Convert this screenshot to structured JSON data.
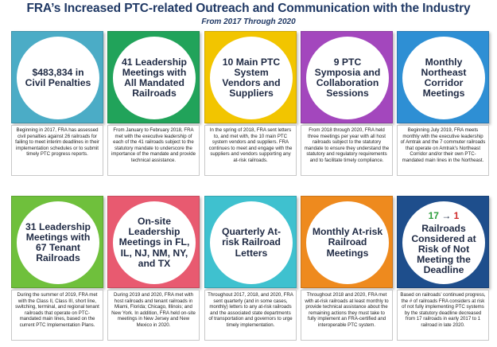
{
  "header": {
    "title": "FRA’s Increased PTC-related Outreach and Communication with the Industry",
    "subtitle": "From 2017 Through 2020"
  },
  "cards": [
    {
      "color": "#4bacc6",
      "headline": "$483,834 in Civil Penalties",
      "description": "Beginning in 2017, FRA has assessed civil penalties against 26 railroads for failing to meet interim deadlines in their implementation schedules or to submit timely PTC progress reports."
    },
    {
      "color": "#21a35a",
      "headline": "41 Leadership Meetings with All Mandated Railroads",
      "description": "From January to February 2018, FRA met with the executive leadership of each of the 41 railroads subject to the statutory mandate to underscore the importance of the mandate and provide technical assistance."
    },
    {
      "color": "#f2c500",
      "headline": "10 Main PTC System Vendors and Suppliers",
      "description": "In the spring of 2018, FRA sent letters to, and met with, the 10 main PTC system vendors and suppliers. FRA continues to meet and engage with the suppliers and vendors supporting any at-risk railroads."
    },
    {
      "color": "#a347bd",
      "headline": "9 PTC Symposia and Collaboration Sessions",
      "description": "From 2018 through 2020, FRA held three meetings per year with all host railroads subject to the statutory mandate to ensure they understand the statutory and regulatory requirements and to facilitate timely compliance."
    },
    {
      "color": "#2e8fd4",
      "headline": "Monthly Northeast Corridor Meetings",
      "description": "Beginning July 2019, FRA meets monthly with the executive leadership of Amtrak and the 7 commuter railroads that operate on Amtrak’s Northeast Corridor and/or their own PTC-mandated main lines in the Northeast."
    },
    {
      "color": "#6fc03c",
      "headline": "31 Leadership Meetings with 67 Tenant Railroads",
      "description": "During the summer of 2019, FRA met with the Class II, Class III, short line, switching, terminal, and regional tenant railroads that operate on PTC-mandated main lines, based on the current PTC Implementation Plans."
    },
    {
      "color": "#e85a70",
      "headline": "On-site Leadership Meetings in FL, IL, NJ, NM, NY, and TX",
      "description": "During 2019 and 2020, FRA met with host railroads and tenant railroads in Miami, Florida; Chicago, Illinois; and New York. In addition, FRA held on-site meetings in New Jersey and New Mexico in 2020."
    },
    {
      "color": "#3fc1cf",
      "headline": "Quarterly At-risk Railroad Letters",
      "description": "Throughout 2017, 2018, and 2020, FRA sent quarterly (and in some cases, monthly) letters to any at-risk railroads and the associated state departments of transportation and governors to urge timely implementation."
    },
    {
      "color": "#ee8a1e",
      "headline": "Monthly At-risk Railroad Meetings",
      "description": "Throughout 2018 and 2020, FRA met with at-risk railroads at least monthly to provide technical assistance about the remaining actions they must take to fully implement an FRA-certified and interoperable PTC system."
    },
    {
      "color": "#1e4e8c",
      "metric_from": "17",
      "metric_arrow": "→",
      "metric_to": "1",
      "metric_from_color": "#2e9e3e",
      "metric_to_color": "#d02a2a",
      "headline": "Railroads Considered at Risk of Not Meeting the Deadline",
      "description": "Based on railroads’ continued progress, the # of railroads FRA considers at risk of not fully implementing PTC systems by the statutory deadline decreased from 17 railroads in early 2017 to 1 railroad in late 2020."
    }
  ]
}
